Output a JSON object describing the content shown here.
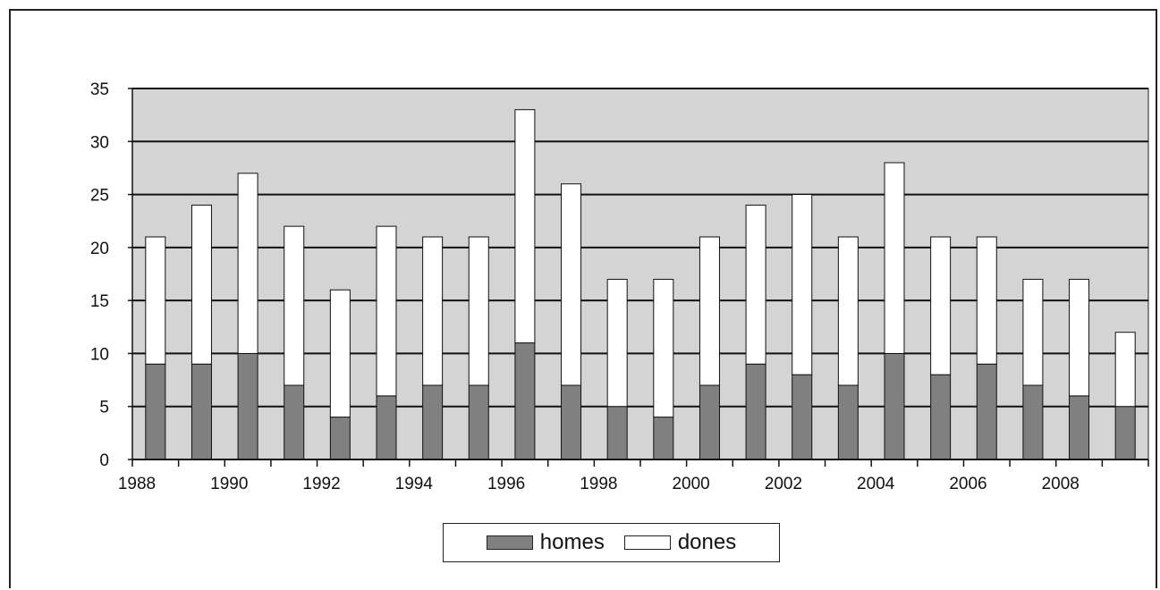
{
  "chart_data": {
    "type": "bar",
    "stacked": true,
    "categories": [
      "1988",
      "1989",
      "1990",
      "1991",
      "1992",
      "1993",
      "1994",
      "1995",
      "1996",
      "1997",
      "1998",
      "1999",
      "2000",
      "2001",
      "2002",
      "2003",
      "2004",
      "2005",
      "2006",
      "2007",
      "2008",
      "2009"
    ],
    "x_tick_labels": [
      "1988",
      "1990",
      "1992",
      "1994",
      "1996",
      "1998",
      "2000",
      "2002",
      "2004",
      "2006",
      "2008"
    ],
    "series": [
      {
        "name": "homes",
        "color": "#808080",
        "values": [
          9,
          9,
          10,
          7,
          4,
          6,
          7,
          7,
          11,
          7,
          5,
          4,
          7,
          9,
          8,
          7,
          10,
          8,
          9,
          7,
          6,
          5
        ]
      },
      {
        "name": "dones",
        "color": "#ffffff",
        "values": [
          12,
          15,
          17,
          15,
          12,
          16,
          14,
          14,
          22,
          19,
          12,
          13,
          14,
          15,
          17,
          14,
          18,
          13,
          12,
          10,
          11,
          7
        ]
      }
    ],
    "ylim": [
      0,
      35
    ],
    "yticks": [
      "0",
      "5",
      "10",
      "15",
      "20",
      "25",
      "30",
      "35"
    ],
    "grid": true,
    "plot_background": "#d4d4d4",
    "legend_position": "bottom"
  }
}
